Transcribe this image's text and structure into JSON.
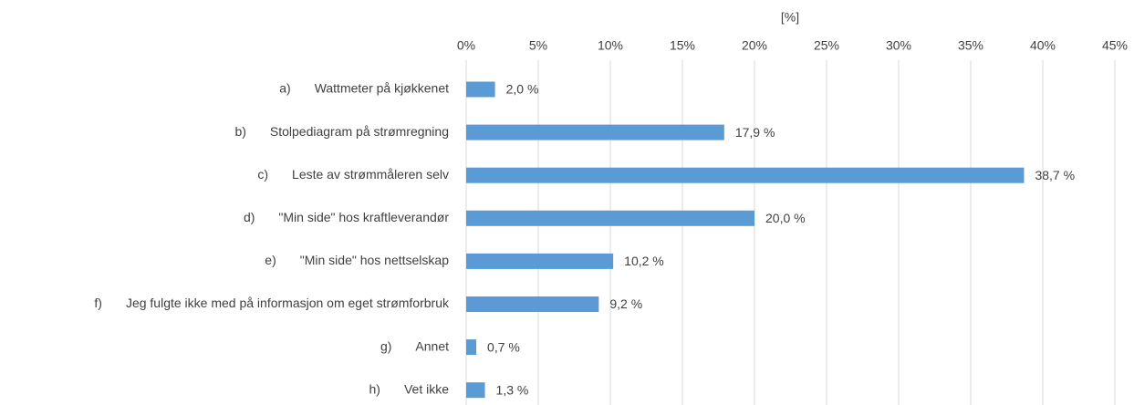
{
  "chart_data": {
    "type": "bar",
    "orientation": "horizontal",
    "x_axis_label": "[%]",
    "category_letters": [
      "a)",
      "b)",
      "c)",
      "d)",
      "e)",
      "f)",
      "g)",
      "h)"
    ],
    "categories": [
      "Wattmeter på kjøkkenet",
      "Stolpediagram på strømregning",
      "Leste av strømmåleren selv",
      "\"Min side\" hos kraftleverandør",
      "\"Min side\" hos nettselskap",
      "Jeg fulgte ikke med på informasjon om eget strømforbruk",
      "Annet",
      "Vet ikke"
    ],
    "values": [
      2.0,
      17.9,
      38.7,
      20.0,
      10.2,
      9.2,
      0.7,
      1.3
    ],
    "value_labels": [
      "2,0 %",
      "17,9 %",
      "38,7 %",
      "20,0 %",
      "10,2 %",
      "9,2 %",
      "0,7 %",
      "1,3 %"
    ],
    "color": "#5b9bd5",
    "xlim": [
      0,
      45
    ],
    "xticks": [
      {
        "value": 0,
        "label": "0%"
      },
      {
        "value": 5,
        "label": "5%"
      },
      {
        "value": 10,
        "label": "10%"
      },
      {
        "value": 15,
        "label": "15%"
      },
      {
        "value": 20,
        "label": "20%"
      },
      {
        "value": 25,
        "label": "25%"
      },
      {
        "value": 30,
        "label": "30%"
      },
      {
        "value": 35,
        "label": "35%"
      },
      {
        "value": 40,
        "label": "40%"
      },
      {
        "value": 45,
        "label": "45%"
      }
    ],
    "grid": true
  }
}
